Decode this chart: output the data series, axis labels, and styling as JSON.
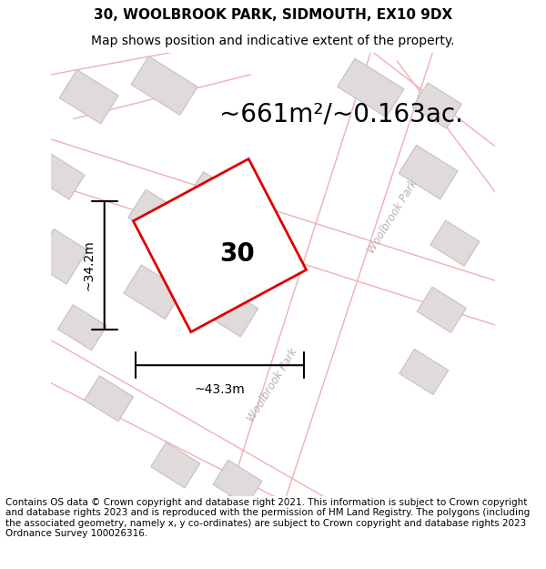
{
  "title_line1": "30, WOOLBROOK PARK, SIDMOUTH, EX10 9DX",
  "title_line2": "Map shows position and indicative extent of the property.",
  "area_text": "~661m²/~0.163ac.",
  "plot_number": "30",
  "dim_width": "~43.3m",
  "dim_height": "~34.2m",
  "street_name": "Woolbrook Park",
  "footer_text": "Contains OS data © Crown copyright and database right 2021. This information is subject to Crown copyright and database rights 2023 and is reproduced with the permission of HM Land Registry. The polygons (including the associated geometry, namely x, y co-ordinates) are subject to Crown copyright and database rights 2023 Ordnance Survey 100026316.",
  "map_bg": "#f9f6f6",
  "road_line_color": "#f0b0b0",
  "building_fill": "#e0dada",
  "building_edge": "#c8c0c0",
  "plot_fill": "none",
  "plot_edge": "#dd0000",
  "plot_lw": 2.0,
  "dim_color": "#000000",
  "text_color": "#000000",
  "street_text_color": "#b8b0b0",
  "title_fontsize": 11,
  "subtitle_fontsize": 10,
  "area_fontsize": 20,
  "plot_num_fontsize": 20,
  "dim_fontsize": 10,
  "footer_fontsize": 7.5
}
